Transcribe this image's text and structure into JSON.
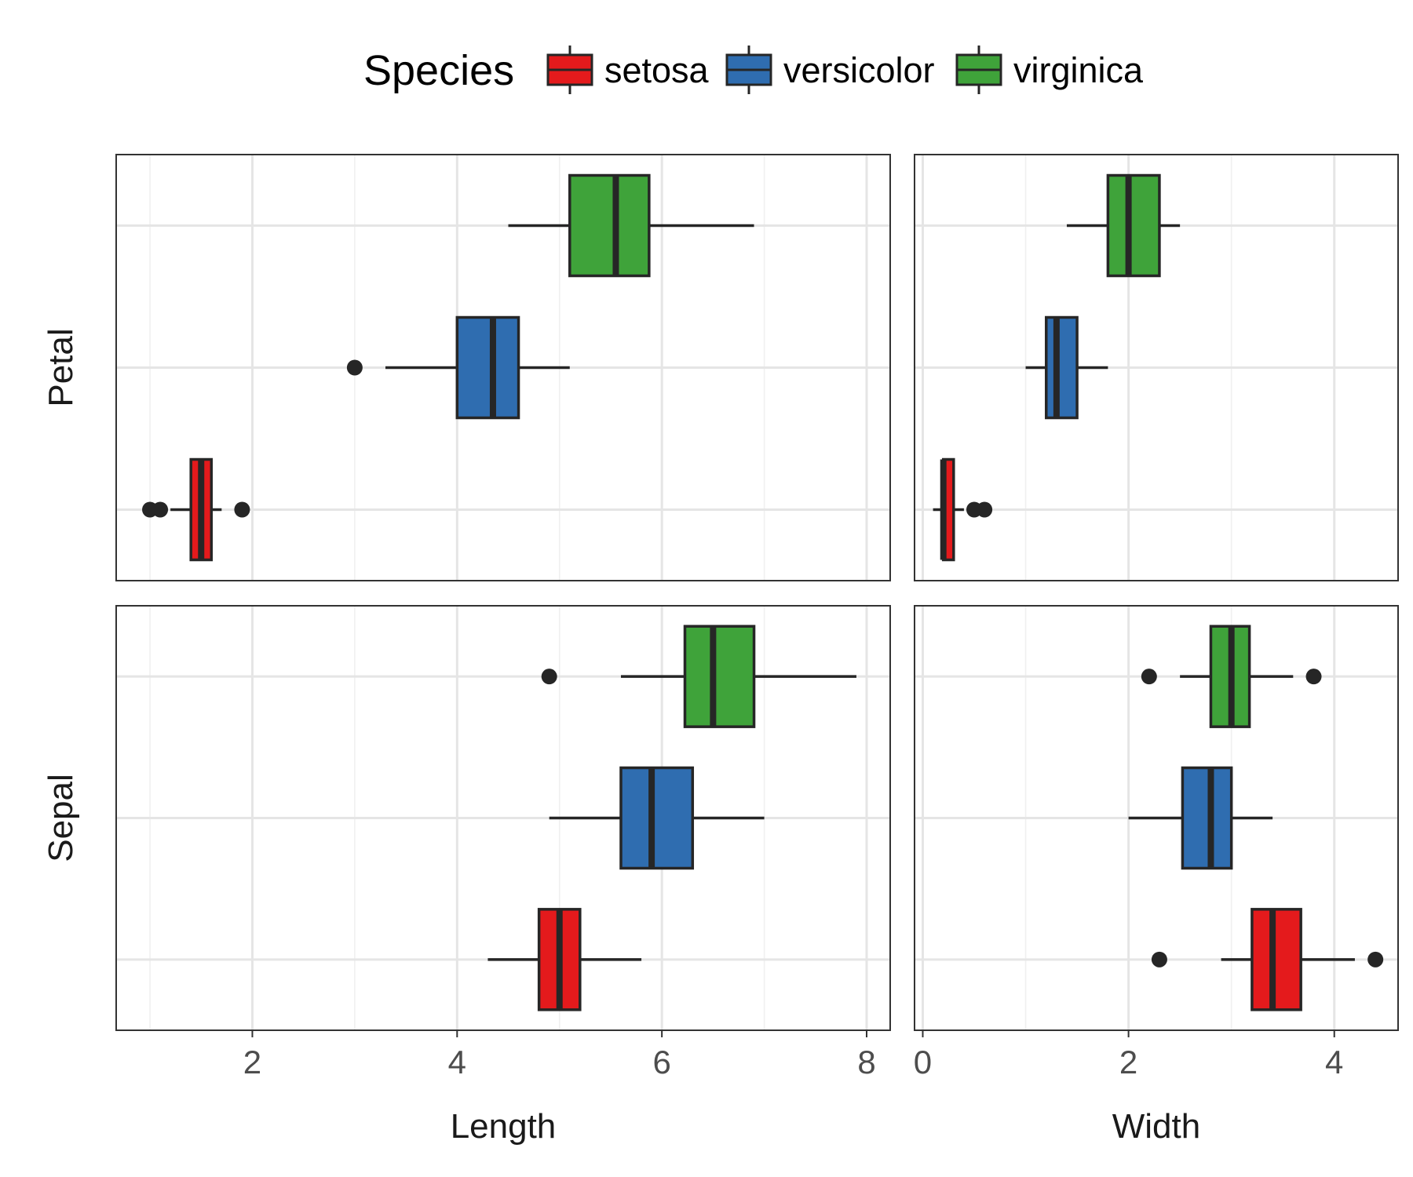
{
  "chart_data": {
    "type": "boxplot",
    "legend": {
      "title": "Species",
      "position": "top",
      "items": [
        {
          "name": "setosa",
          "color": "#e41a1c"
        },
        {
          "name": "versicolor",
          "color": "#2f6db0"
        },
        {
          "name": "virginica",
          "color": "#3fa33a"
        }
      ]
    },
    "x_labels": {
      "Length": "Length",
      "Width": "Width"
    },
    "rows": [
      "Petal",
      "Sepal"
    ],
    "columns": [
      {
        "key": "Length",
        "xlim": [
          0.67,
          8.23
        ],
        "ticks": [
          2,
          4,
          6,
          8
        ],
        "minor_ticks": [
          1,
          3,
          5,
          7
        ]
      },
      {
        "key": "Width",
        "xlim": [
          -0.08,
          4.62
        ],
        "ticks": [
          0,
          2,
          4
        ],
        "minor_ticks": [
          1,
          3
        ]
      }
    ],
    "grid": true,
    "panels": [
      {
        "row": "Petal",
        "col": "Length",
        "boxes": [
          {
            "species": "setosa",
            "whisker_low": 1.2,
            "q1": 1.4,
            "median": 1.5,
            "q3": 1.6,
            "whisker_high": 1.7,
            "outliers": [
              1.0,
              1.1,
              1.9
            ]
          },
          {
            "species": "versicolor",
            "whisker_low": 3.3,
            "q1": 4.0,
            "median": 4.35,
            "q3": 4.6,
            "whisker_high": 5.1,
            "outliers": [
              3.0
            ]
          },
          {
            "species": "virginica",
            "whisker_low": 4.5,
            "q1": 5.1,
            "median": 5.55,
            "q3": 5.875,
            "whisker_high": 6.9,
            "outliers": []
          }
        ]
      },
      {
        "row": "Petal",
        "col": "Width",
        "boxes": [
          {
            "species": "setosa",
            "whisker_low": 0.1,
            "q1": 0.2,
            "median": 0.2,
            "q3": 0.3,
            "whisker_high": 0.4,
            "outliers": [
              0.5,
              0.6
            ]
          },
          {
            "species": "versicolor",
            "whisker_low": 1.0,
            "q1": 1.2,
            "median": 1.3,
            "q3": 1.5,
            "whisker_high": 1.8,
            "outliers": []
          },
          {
            "species": "virginica",
            "whisker_low": 1.4,
            "q1": 1.8,
            "median": 2.0,
            "q3": 2.3,
            "whisker_high": 2.5,
            "outliers": []
          }
        ]
      },
      {
        "row": "Sepal",
        "col": "Length",
        "boxes": [
          {
            "species": "setosa",
            "whisker_low": 4.3,
            "q1": 4.8,
            "median": 5.0,
            "q3": 5.2,
            "whisker_high": 5.8,
            "outliers": []
          },
          {
            "species": "versicolor",
            "whisker_low": 4.9,
            "q1": 5.6,
            "median": 5.9,
            "q3": 6.3,
            "whisker_high": 7.0,
            "outliers": []
          },
          {
            "species": "virginica",
            "whisker_low": 5.6,
            "q1": 6.225,
            "median": 6.5,
            "q3": 6.9,
            "whisker_high": 7.9,
            "outliers": [
              4.9
            ]
          }
        ]
      },
      {
        "row": "Sepal",
        "col": "Width",
        "boxes": [
          {
            "species": "setosa",
            "whisker_low": 2.9,
            "q1": 3.2,
            "median": 3.4,
            "q3": 3.675,
            "whisker_high": 4.2,
            "outliers": [
              2.3,
              4.4
            ]
          },
          {
            "species": "versicolor",
            "whisker_low": 2.0,
            "q1": 2.525,
            "median": 2.8,
            "q3": 3.0,
            "whisker_high": 3.4,
            "outliers": []
          },
          {
            "species": "virginica",
            "whisker_low": 2.5,
            "q1": 2.8,
            "median": 3.0,
            "q3": 3.175,
            "whisker_high": 3.6,
            "outliers": [
              2.2,
              3.8
            ]
          }
        ]
      }
    ]
  }
}
